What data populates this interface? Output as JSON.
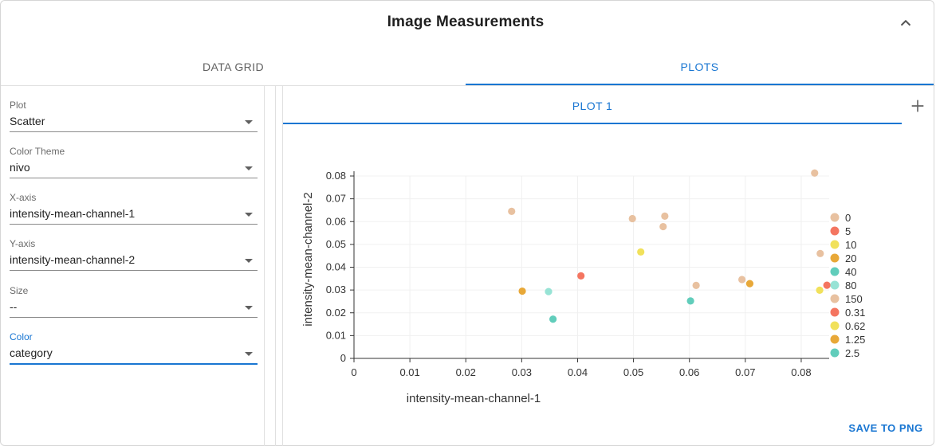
{
  "header": {
    "title": "Image Measurements",
    "collapse_icon": "chevron-up-icon"
  },
  "tabs": [
    {
      "label": "DATA GRID",
      "selected": false
    },
    {
      "label": "PLOTS",
      "selected": true
    }
  ],
  "controls": {
    "plot": {
      "label": "Plot",
      "value": "Scatter"
    },
    "color_theme": {
      "label": "Color Theme",
      "value": "nivo"
    },
    "x_axis": {
      "label": "X-axis",
      "value": "intensity-mean-channel-1"
    },
    "y_axis": {
      "label": "Y-axis",
      "value": "intensity-mean-channel-2"
    },
    "size": {
      "label": "Size",
      "value": "--"
    },
    "color": {
      "label": "Color",
      "value": "category"
    }
  },
  "plot_tabs": [
    {
      "label": "PLOT 1",
      "selected": true
    }
  ],
  "add_plot_icon": "plus-icon",
  "save_button": "SAVE TO PNG",
  "colors": {
    "accent": "#1976d2",
    "c0": "#e8c1a0",
    "c1": "#f47560",
    "c2": "#f1e15b",
    "c3": "#e8a838",
    "c4": "#61cdbb",
    "c5": "#97e3d5"
  },
  "chart_data": {
    "type": "scatter",
    "xlabel": "intensity-mean-channel-1",
    "ylabel": "intensity-mean-channel-2",
    "xlim": [
      0,
      0.085
    ],
    "ylim": [
      0,
      0.08
    ],
    "xticks": [
      "0",
      "0.01",
      "0.02",
      "0.03",
      "0.04",
      "0.05",
      "0.06",
      "0.07",
      "0.08"
    ],
    "yticks": [
      "0",
      "0.01",
      "0.02",
      "0.03",
      "0.04",
      "0.05",
      "0.06",
      "0.07",
      "0.08"
    ],
    "grid": true,
    "legend_position": "right",
    "series": [
      {
        "name": "0",
        "color": "#e8c1a0",
        "points": []
      },
      {
        "name": "5",
        "color": "#f47560",
        "points": []
      },
      {
        "name": "10",
        "color": "#f1e15b",
        "points": []
      },
      {
        "name": "20",
        "color": "#e8a838",
        "points": []
      },
      {
        "name": "40",
        "color": "#61cdbb",
        "points": []
      },
      {
        "name": "80",
        "color": "#97e3d5",
        "points": [
          [
            0.0348,
            0.0293
          ]
        ]
      },
      {
        "name": "150",
        "color": "#e8c1a0",
        "points": [
          [
            0.0282,
            0.0645
          ],
          [
            0.0498,
            0.0613
          ],
          [
            0.0553,
            0.0578
          ],
          [
            0.0556,
            0.0624
          ],
          [
            0.0612,
            0.032
          ],
          [
            0.0694,
            0.0346
          ],
          [
            0.0824,
            0.0813
          ],
          [
            0.0834,
            0.046
          ]
        ]
      },
      {
        "name": "0.31",
        "color": "#f47560",
        "points": [
          [
            0.0406,
            0.0362
          ],
          [
            0.0846,
            0.0321
          ]
        ]
      },
      {
        "name": "0.62",
        "color": "#f1e15b",
        "points": [
          [
            0.0513,
            0.0467
          ],
          [
            0.0833,
            0.0299
          ]
        ]
      },
      {
        "name": "1.25",
        "color": "#e8a838",
        "points": [
          [
            0.0301,
            0.0295
          ],
          [
            0.0708,
            0.0328
          ]
        ]
      },
      {
        "name": "2.5",
        "color": "#61cdbb",
        "points": [
          [
            0.0356,
            0.0172
          ],
          [
            0.0602,
            0.0252
          ]
        ]
      }
    ]
  }
}
